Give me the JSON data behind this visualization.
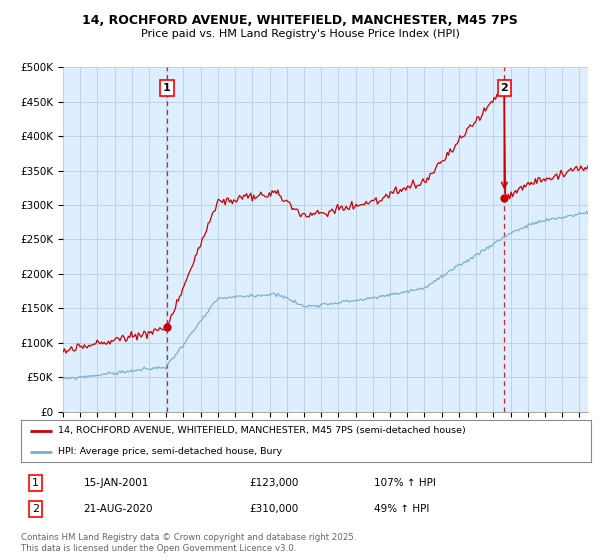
{
  "title1": "14, ROCHFORD AVENUE, WHITEFIELD, MANCHESTER, M45 7PS",
  "title2": "Price paid vs. HM Land Registry's House Price Index (HPI)",
  "legend1": "14, ROCHFORD AVENUE, WHITEFIELD, MANCHESTER, M45 7PS (semi-detached house)",
  "legend2": "HPI: Average price, semi-detached house, Bury",
  "footnote": "Contains HM Land Registry data © Crown copyright and database right 2025.\nThis data is licensed under the Open Government Licence v3.0.",
  "sale1_label": "1",
  "sale1_date": "15-JAN-2001",
  "sale1_price": "£123,000",
  "sale1_hpi": "107% ↑ HPI",
  "sale2_label": "2",
  "sale2_date": "21-AUG-2020",
  "sale2_price": "£310,000",
  "sale2_hpi": "49% ↑ HPI",
  "sale1_x": 2001.04,
  "sale1_y": 123000,
  "sale2_x": 2020.64,
  "sale2_y": 310000,
  "hpi_color": "#7ab0d4",
  "price_color": "#cc0000",
  "ylim": [
    0,
    500000
  ],
  "xlim_start": 1995.0,
  "xlim_end": 2025.5,
  "chart_bg": "#ddeeff",
  "background_color": "#ffffff",
  "grid_color": "#bbccdd"
}
